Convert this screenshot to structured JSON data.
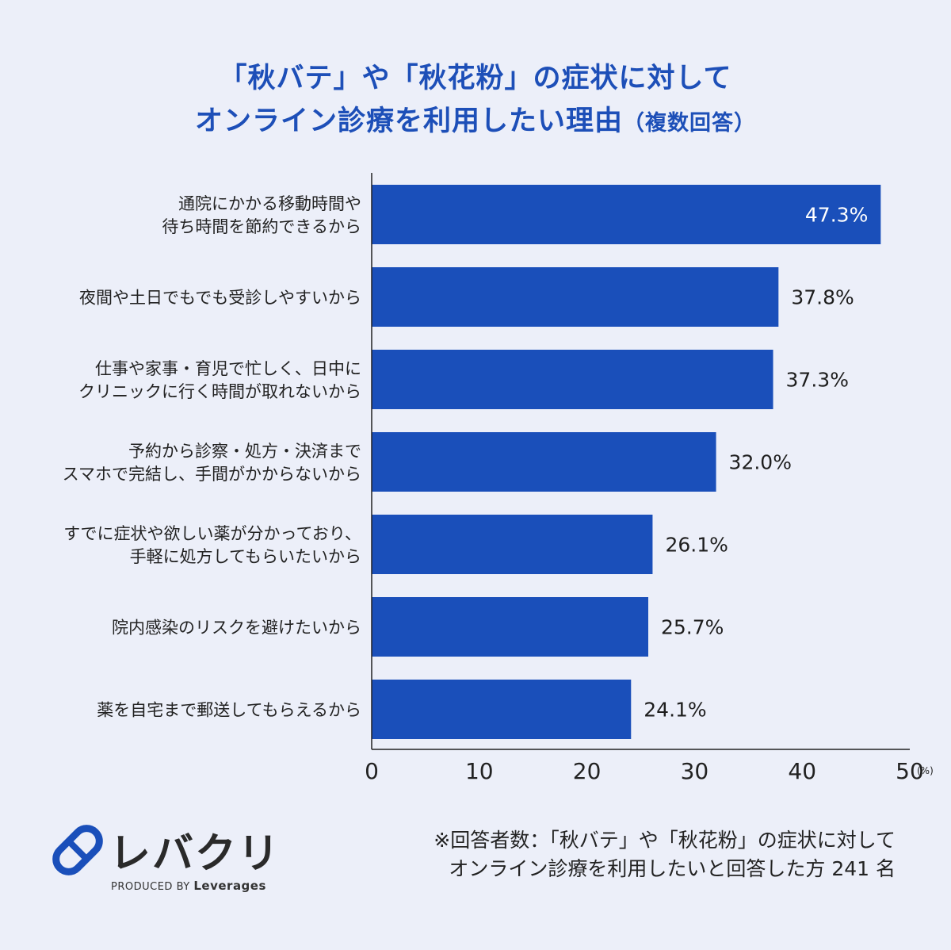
{
  "title": {
    "line1": "「秋バテ」や「秋花粉」の症状に対して",
    "line2": "オンライン診療を利用したい理由",
    "line2_sub": "（複数回答）"
  },
  "chart_data": {
    "type": "bar",
    "orientation": "horizontal",
    "categories": [
      [
        "通院にかかる移動時間や",
        "待ち時間を節約できるから"
      ],
      [
        "夜間や土日でもでも受診しやすいから"
      ],
      [
        "仕事や家事・育児で忙しく、日中に",
        "クリニックに行く時間が取れないから"
      ],
      [
        "予約から診察・処方・決済まで",
        "スマホで完結し、手間がかからないから"
      ],
      [
        "すでに症状や欲しい薬が分かっており、",
        "手軽に処方してもらいたいから"
      ],
      [
        "院内感染のリスクを避けたいから"
      ],
      [
        "薬を自宅まで郵送してもらえるから"
      ]
    ],
    "values": [
      47.3,
      37.8,
      37.3,
      32.0,
      26.1,
      25.7,
      24.1
    ],
    "value_labels": [
      "47.3%",
      "37.8%",
      "37.3%",
      "32.0%",
      "26.1%",
      "25.7%",
      "24.1%"
    ],
    "xlim": [
      0,
      50
    ],
    "xticks": [
      "0",
      "10",
      "20",
      "30",
      "40",
      "50"
    ],
    "xunit": "(%)",
    "bar_color": "#1a4fba",
    "grid": false
  },
  "footnote": {
    "line1": "※回答者数：「秋バテ」や「秋花粉」の症状に対して",
    "line2": "オンライン診療を利用したいと回答した方 241 名"
  },
  "logo": {
    "name": "レバクリ",
    "produced_by": "PRODUCED BY",
    "company": "Leverages"
  },
  "colors": {
    "background": "#eceff9",
    "title": "#1d4fb8",
    "bar": "#1a4fba",
    "logo_accent": "#1a4fba"
  }
}
